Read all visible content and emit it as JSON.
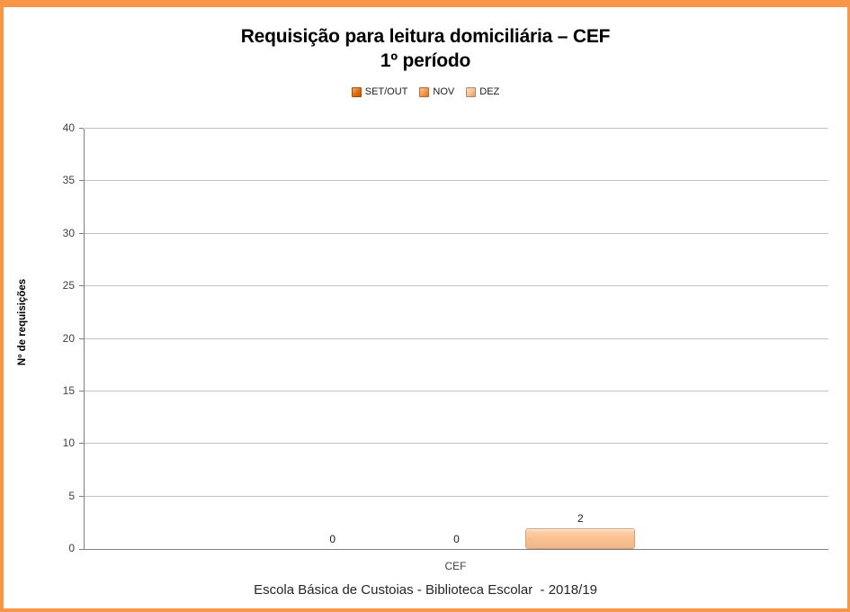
{
  "window": {
    "border_color": "#F79646"
  },
  "chart_data": {
    "type": "bar",
    "title_line1": "Requisição para leitura domiciliária – CEF",
    "title_line2": "1º período",
    "categories": [
      "CEF"
    ],
    "series": [
      {
        "name": "SET/OUT",
        "values": [
          0
        ],
        "color": "#E36C09"
      },
      {
        "name": "NOV",
        "values": [
          0
        ],
        "color": "#F79646"
      },
      {
        "name": "DEZ",
        "values": [
          2
        ],
        "color": "#FAC090"
      }
    ],
    "xlabel": "",
    "ylabel": "Nº de requisições",
    "ylim": [
      0,
      40
    ],
    "ytick_step": 5,
    "yticks": [
      0,
      5,
      10,
      15,
      20,
      25,
      30,
      35,
      40
    ],
    "grid": true,
    "legend_position": "top",
    "data_labels": [
      "0",
      "0",
      "2"
    ],
    "footer": "Escola Básica de Custoias - Biblioteca Escolar  - 2018/19"
  },
  "colors": {
    "page_border": "#F79646",
    "gridline": "#C3C3C3",
    "axis_line": "#7F7F7F",
    "tick_text": "#3F3F3F",
    "title_text": "#000000",
    "footer_text": "#262626"
  }
}
